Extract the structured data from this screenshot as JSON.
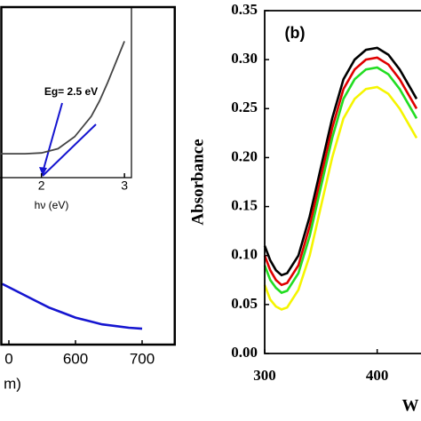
{
  "chart_data": [
    {
      "type": "line",
      "xlabel": "m)",
      "x": [
        490,
        500,
        520,
        540,
        560,
        580,
        600,
        620,
        640,
        660,
        680,
        700
      ],
      "series": [
        {
          "color": "#1515d0",
          "values": [
            0.18,
            0.17,
            0.15,
            0.13,
            0.11,
            0.095,
            0.08,
            0.07,
            0.06,
            0.055,
            0.05,
            0.047
          ]
        }
      ],
      "xlim": [
        487,
        749
      ],
      "ylim": [
        0,
        1
      ],
      "xticks": [
        {
          "value": 500,
          "label": "0"
        },
        600,
        700
      ]
    },
    {
      "type": "line",
      "xlabel": "hν (eV)",
      "annotation": "Eg= 2.5 eV",
      "x": [
        1.5,
        1.8,
        2.0,
        2.2,
        2.4,
        2.6,
        2.7,
        2.8,
        2.9,
        3.0
      ],
      "series": [
        {
          "color": "#444444",
          "values": [
            0.14,
            0.14,
            0.145,
            0.17,
            0.24,
            0.36,
            0.45,
            0.56,
            0.68,
            0.8
          ]
        }
      ],
      "xlim": [
        1.5,
        3.02
      ],
      "ylim": [
        0,
        1
      ],
      "xticks": [
        2,
        3
      ]
    },
    {
      "type": "line",
      "ylabel": "Absorbance",
      "panel_label": "(b)",
      "xlabel": "W",
      "x": [
        300,
        305,
        310,
        315,
        320,
        330,
        340,
        350,
        360,
        370,
        380,
        390,
        400,
        410,
        420,
        430,
        435
      ],
      "series": [
        {
          "color": "#000000",
          "values": [
            0.11,
            0.095,
            0.085,
            0.08,
            0.082,
            0.1,
            0.14,
            0.19,
            0.24,
            0.28,
            0.3,
            0.31,
            0.312,
            0.305,
            0.29,
            0.27,
            0.26
          ]
        },
        {
          "color": "#e00000",
          "values": [
            0.1,
            0.085,
            0.075,
            0.07,
            0.072,
            0.09,
            0.13,
            0.18,
            0.23,
            0.27,
            0.29,
            0.3,
            0.302,
            0.295,
            0.28,
            0.26,
            0.25
          ]
        },
        {
          "color": "#22dd22",
          "values": [
            0.09,
            0.075,
            0.067,
            0.062,
            0.064,
            0.082,
            0.12,
            0.17,
            0.22,
            0.26,
            0.28,
            0.29,
            0.292,
            0.285,
            0.27,
            0.25,
            0.24
          ]
        },
        {
          "color": "#f5f500",
          "values": [
            0.07,
            0.055,
            0.048,
            0.045,
            0.047,
            0.065,
            0.1,
            0.15,
            0.2,
            0.24,
            0.26,
            0.27,
            0.272,
            0.265,
            0.25,
            0.23,
            0.22
          ]
        }
      ],
      "xlim": [
        300,
        435
      ],
      "ylim": [
        0,
        0.35
      ],
      "xticks": [
        300,
        400
      ],
      "yticks": [
        {
          "value": 0,
          "label": "0.00"
        },
        {
          "value": 0.05,
          "label": "0.05"
        },
        {
          "value": 0.1,
          "label": "0.10"
        },
        {
          "value": 0.15,
          "label": "0.15"
        },
        {
          "value": 0.2,
          "label": "0.20"
        },
        {
          "value": 0.25,
          "label": "0.25"
        },
        {
          "value": 0.3,
          "label": "0.30"
        },
        {
          "value": 0.35,
          "label": "0.35"
        }
      ]
    }
  ]
}
